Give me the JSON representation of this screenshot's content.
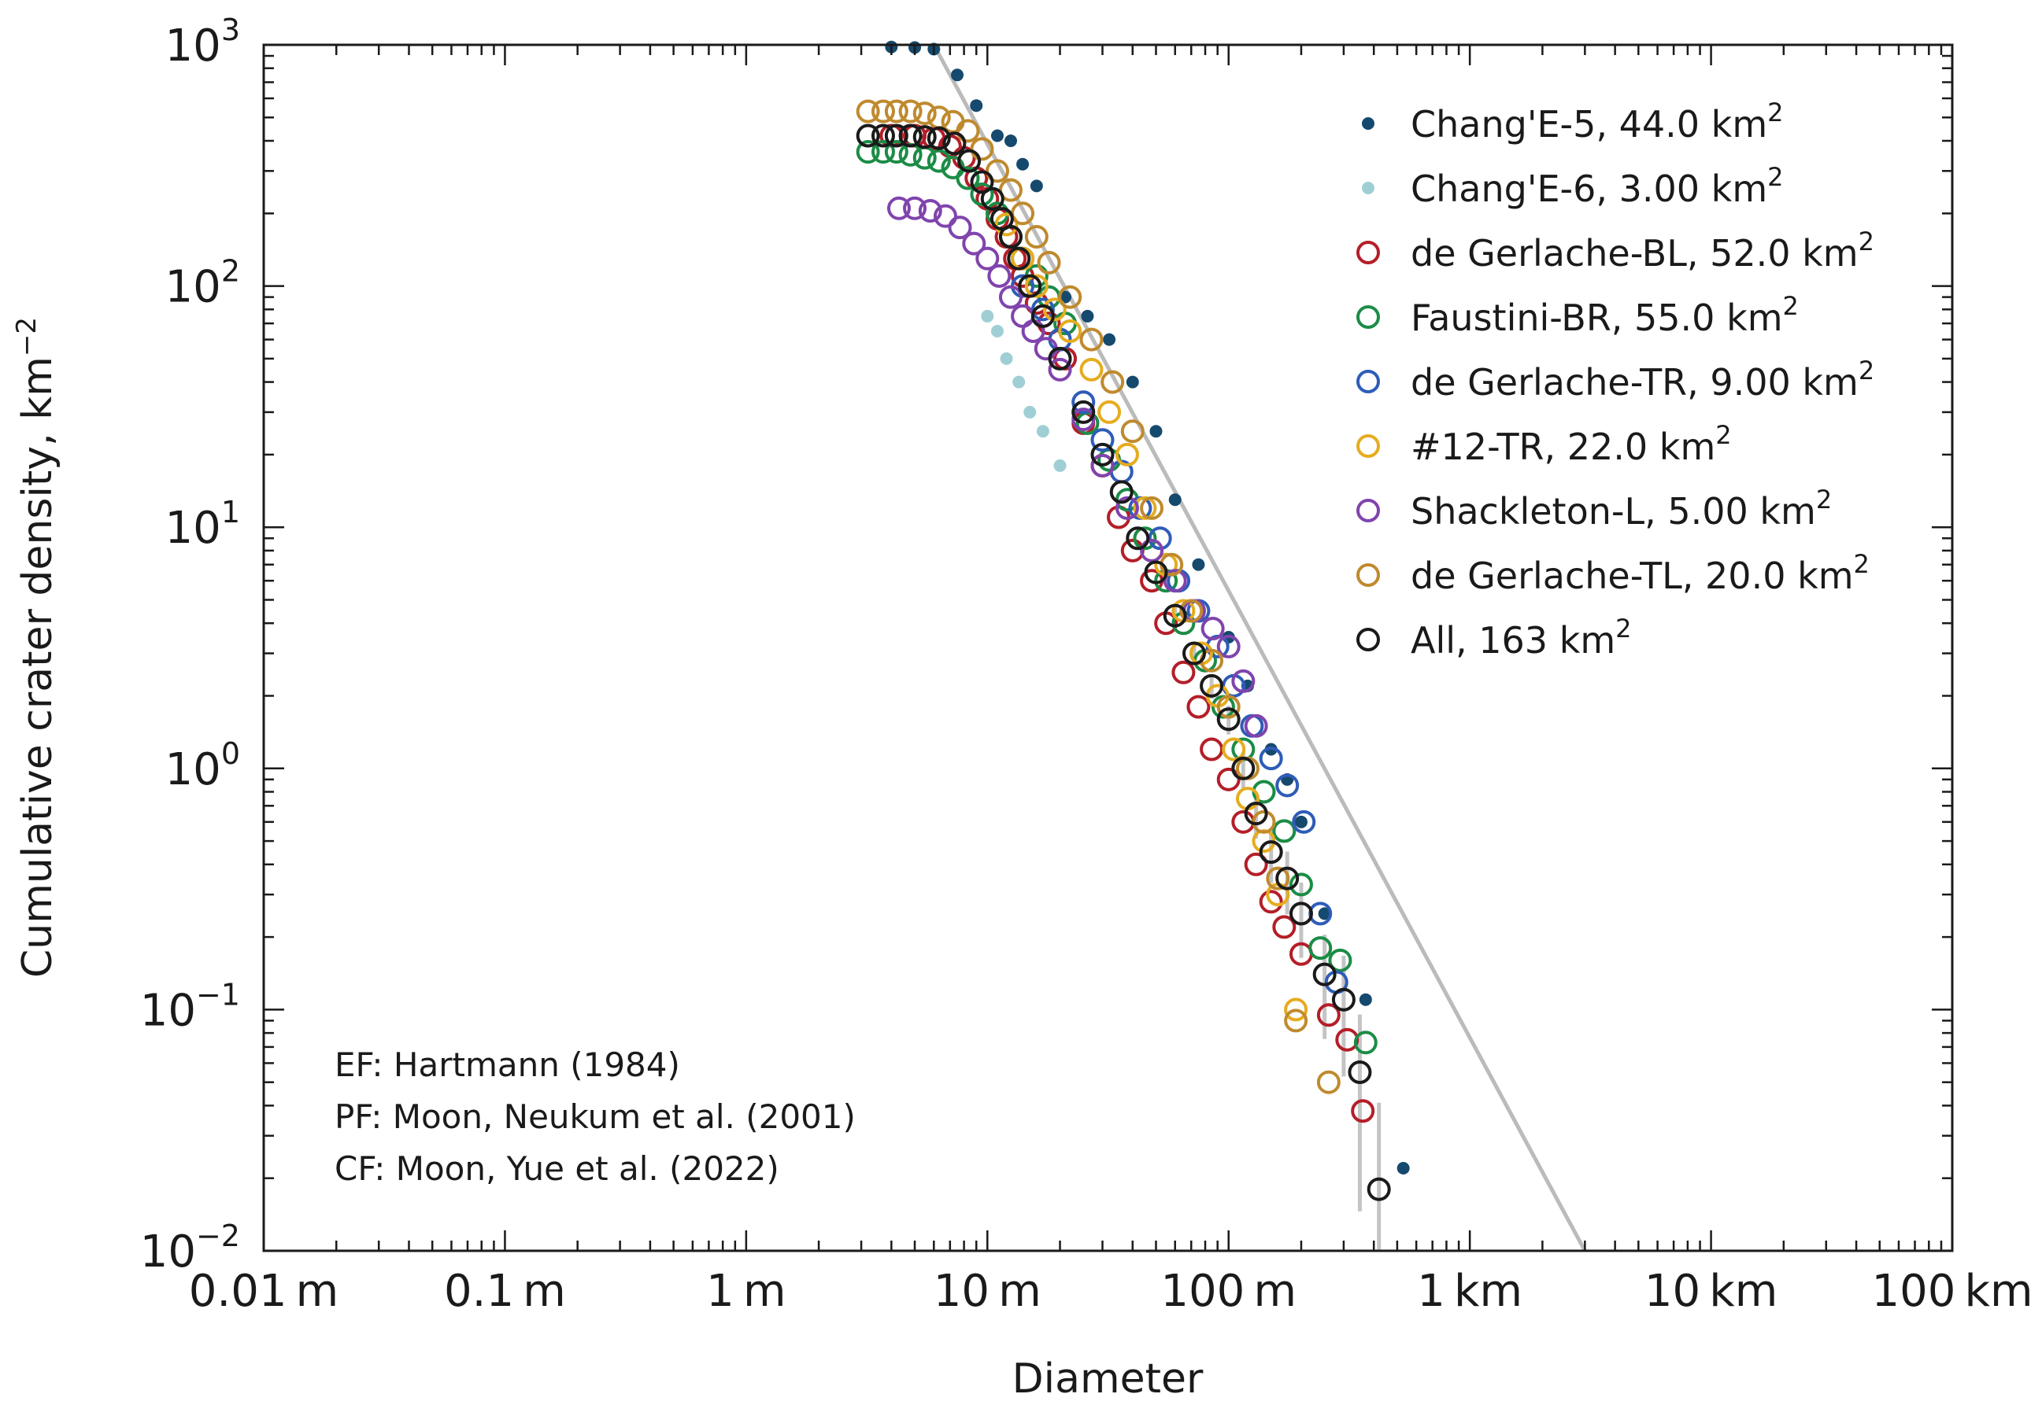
{
  "chart_data": {
    "type": "scatter",
    "title": "",
    "xlabel": "Diameter",
    "ylabel": "Cumulative crater density, km",
    "ylabel_exponent": "−2",
    "x_scale": "log",
    "y_scale": "log",
    "xlim_m": [
      0.01,
      100000
    ],
    "ylim": [
      0.01,
      1000
    ],
    "grid": false,
    "legend_position": "top-right",
    "x_tick_labels": [
      {
        "value": 0.01,
        "label": "0.01 m"
      },
      {
        "value": 0.1,
        "label": "0.1 m"
      },
      {
        "value": 1,
        "label": "1 m"
      },
      {
        "value": 10,
        "label": "10 m"
      },
      {
        "value": 100,
        "label": "100 m"
      },
      {
        "value": 1000,
        "label": "1 km"
      },
      {
        "value": 10000,
        "label": "10 km"
      },
      {
        "value": 100000,
        "label": "100 km"
      }
    ],
    "y_tick_labels": [
      {
        "value": 1000,
        "base": "10",
        "exp": "3"
      },
      {
        "value": 100,
        "base": "10",
        "exp": "2"
      },
      {
        "value": 10,
        "base": "10",
        "exp": "1"
      },
      {
        "value": 1,
        "base": "10",
        "exp": "0"
      },
      {
        "value": 0.1,
        "base": "10",
        "exp": "−1"
      },
      {
        "value": 0.01,
        "base": "10",
        "exp": "−2"
      }
    ],
    "reference_line": {
      "color": "#bbbbbb",
      "points": [
        [
          6,
          1000
        ],
        [
          3000,
          0.01
        ]
      ]
    },
    "series": [
      {
        "name": "Chang'E-5",
        "area": "44.0",
        "unit": "km",
        "unit_exp": "2",
        "marker": "dot",
        "color": "#16496e",
        "x": [
          4,
          5,
          6,
          7.5,
          9,
          11,
          12.5,
          14,
          16,
          21,
          26,
          32,
          40,
          50,
          60,
          75,
          100,
          120,
          150,
          175,
          200,
          250,
          370,
          530
        ],
        "y": [
          980,
          975,
          960,
          750,
          560,
          420,
          400,
          320,
          260,
          90,
          75,
          60,
          40,
          25,
          13,
          7,
          3.5,
          2.2,
          1.2,
          0.9,
          0.6,
          0.25,
          0.11,
          0.022
        ]
      },
      {
        "name": "Chang'E-6",
        "area": "3.00",
        "unit": "km",
        "unit_exp": "2",
        "marker": "dot",
        "color": "#9fcfd4",
        "x": [
          10,
          11,
          12,
          13.5,
          15,
          17,
          20
        ],
        "y": [
          75,
          65,
          50,
          40,
          30,
          25,
          18
        ]
      },
      {
        "name": "de Gerlache-BL",
        "area": "52.0",
        "unit": "km",
        "unit_exp": "2",
        "marker": "circle",
        "color": "#b41e28",
        "x": [
          4,
          5,
          6,
          7,
          8,
          9,
          10,
          11,
          12,
          13,
          14,
          16,
          18,
          21,
          25,
          30,
          35,
          40,
          48,
          55,
          65,
          75,
          85,
          100,
          115,
          130,
          150,
          170,
          200,
          260,
          310,
          360
        ],
        "y": [
          420,
          420,
          410,
          380,
          340,
          280,
          230,
          190,
          160,
          130,
          110,
          85,
          70,
          50,
          27,
          18,
          11,
          8,
          6,
          4,
          2.5,
          1.8,
          1.2,
          0.9,
          0.6,
          0.4,
          0.28,
          0.22,
          0.17,
          0.095,
          0.075,
          0.038
        ]
      },
      {
        "name": "Faustini-BR",
        "area": "55.0",
        "unit": "km",
        "unit_exp": "2",
        "marker": "circle",
        "color": "#1b8c46",
        "x": [
          3.2,
          3.7,
          4.2,
          4.8,
          5.5,
          6.3,
          7.2,
          8.3,
          9.5,
          11,
          12.5,
          14,
          16,
          18,
          21,
          26,
          32,
          38,
          45,
          55,
          65,
          80,
          95,
          115,
          140,
          170,
          200,
          240,
          290,
          370
        ],
        "y": [
          360,
          360,
          360,
          350,
          340,
          330,
          310,
          280,
          240,
          200,
          160,
          130,
          110,
          90,
          70,
          27,
          19,
          13,
          9,
          6,
          4,
          2.8,
          1.8,
          1.2,
          0.8,
          0.55,
          0.33,
          0.18,
          0.16,
          0.073
        ]
      },
      {
        "name": "de Gerlache-TR",
        "area": "9.00",
        "unit": "km",
        "unit_exp": "2",
        "marker": "circle",
        "color": "#2e5cb8",
        "x": [
          14,
          17,
          20,
          25,
          30,
          36,
          43,
          52,
          62,
          75,
          90,
          105,
          125,
          150,
          175,
          205,
          240,
          280
        ],
        "y": [
          100,
          80,
          60,
          33,
          23,
          17,
          12,
          9,
          6,
          4.5,
          3.2,
          2.2,
          1.5,
          1.1,
          0.85,
          0.6,
          0.25,
          0.13
        ]
      },
      {
        "name": "#12-TR",
        "area": "22.0",
        "unit": "km",
        "unit_exp": "2",
        "marker": "circle",
        "color": "#e6ac1f",
        "x": [
          12,
          14,
          16,
          19,
          22,
          27,
          32,
          38,
          45,
          55,
          65,
          77,
          90,
          105,
          120,
          140,
          160,
          190
        ],
        "y": [
          180,
          130,
          100,
          80,
          65,
          45,
          30,
          20,
          12,
          7,
          4.5,
          3,
          2,
          1.2,
          0.75,
          0.5,
          0.3,
          0.1
        ]
      },
      {
        "name": "Shackleton-L",
        "area": "5.00",
        "unit": "km",
        "unit_exp": "2",
        "marker": "circle",
        "color": "#8044ad",
        "x": [
          4.3,
          5,
          5.8,
          6.7,
          7.7,
          8.8,
          10,
          11.2,
          12.5,
          14,
          15.5,
          17.5,
          20,
          25,
          30,
          38,
          48,
          60,
          72,
          86,
          100,
          115,
          130
        ],
        "y": [
          210,
          210,
          205,
          195,
          175,
          150,
          130,
          110,
          90,
          75,
          65,
          55,
          45,
          28,
          18,
          12,
          8,
          6,
          4.5,
          3.8,
          3.2,
          2.3,
          1.5
        ]
      },
      {
        "name": "de Gerlache-TL",
        "area": "20.0",
        "unit": "km",
        "unit_exp": "2",
        "marker": "circle",
        "color": "#bf8a2e",
        "x": [
          3.2,
          3.7,
          4.2,
          4.8,
          5.5,
          6.3,
          7.2,
          8.3,
          9.5,
          11,
          12.5,
          14,
          16,
          18,
          22,
          27,
          33,
          40,
          48,
          58,
          70,
          85,
          100,
          120,
          140,
          160,
          190,
          260
        ],
        "y": [
          530,
          530,
          530,
          530,
          520,
          500,
          480,
          440,
          370,
          300,
          250,
          200,
          160,
          125,
          90,
          60,
          40,
          25,
          12,
          7,
          4.5,
          2.8,
          1.8,
          1,
          0.6,
          0.35,
          0.09,
          0.05
        ]
      },
      {
        "name": "All",
        "area": "163",
        "unit": "km",
        "unit_exp": "2",
        "marker": "circle",
        "color": "#1a1a1a",
        "x": [
          3.2,
          3.7,
          4.2,
          4.8,
          5.5,
          6.3,
          7.3,
          8.4,
          9.5,
          10.5,
          11.5,
          12.5,
          13.5,
          15,
          17,
          20,
          25,
          30,
          36,
          42,
          50,
          60,
          72,
          85,
          100,
          115,
          130,
          150,
          175,
          200,
          250,
          300,
          350,
          420
        ],
        "y": [
          420,
          420,
          420,
          420,
          415,
          410,
          390,
          330,
          270,
          230,
          190,
          160,
          130,
          100,
          75,
          50,
          30,
          20,
          14,
          9,
          6.5,
          4.3,
          3,
          2.2,
          1.6,
          1,
          0.65,
          0.45,
          0.35,
          0.25,
          0.14,
          0.11,
          0.055,
          0.018
        ]
      }
    ],
    "annotations": [
      "EF: Hartmann (1984)",
      "PF: Moon, Neukum et al. (2001)",
      "CF: Moon, Yue et al. (2022)"
    ]
  }
}
